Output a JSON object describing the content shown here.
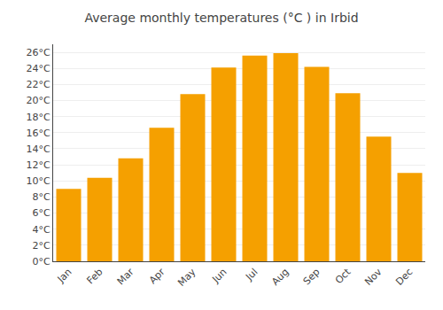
{
  "chart_data": {
    "type": "bar",
    "title": "Average monthly temperatures (°C ) in Irbid",
    "categories": [
      "Jan",
      "Feb",
      "Mar",
      "Apr",
      "May",
      "Jun",
      "Jul",
      "Aug",
      "Sep",
      "Oct",
      "Nov",
      "Dec"
    ],
    "values": [
      9.0,
      10.4,
      12.8,
      16.6,
      20.8,
      24.1,
      25.6,
      25.9,
      24.2,
      20.9,
      15.5,
      11.0
    ],
    "color": "#F5A000",
    "ylim": [
      0,
      27
    ],
    "yticks": [
      {
        "value": 0,
        "label": "0°C"
      },
      {
        "value": 2,
        "label": "2°C"
      },
      {
        "value": 4,
        "label": "4°C"
      },
      {
        "value": 6,
        "label": "6°C"
      },
      {
        "value": 8,
        "label": "8°C"
      },
      {
        "value": 10,
        "label": "10°C"
      },
      {
        "value": 12,
        "label": "12°C"
      },
      {
        "value": 14,
        "label": "14°C"
      },
      {
        "value": 16,
        "label": "16°C"
      },
      {
        "value": 18,
        "label": "18°C"
      },
      {
        "value": 20,
        "label": "20°C"
      },
      {
        "value": 22,
        "label": "22°C"
      },
      {
        "value": 24,
        "label": "24°C"
      },
      {
        "value": 26,
        "label": "26°C"
      }
    ],
    "grid": true
  }
}
